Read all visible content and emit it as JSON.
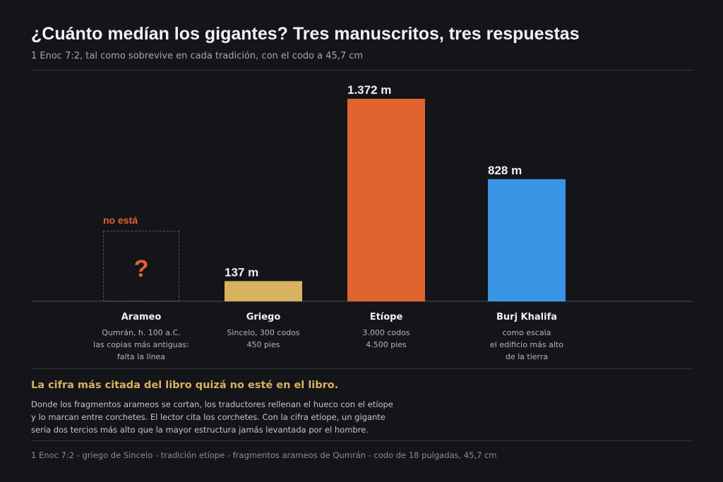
{
  "header": {
    "title": "¿Cuánto medían los gigantes? Tres manuscritos, tres respuestas",
    "subtitle": "1 Enoc 7:2, tal como sobrevive en cada tradición, con el codo a 45,7 cm"
  },
  "chart_data": {
    "type": "bar",
    "categories": [
      "Arameo",
      "Griego",
      "Etíope",
      "Burj Khalifa"
    ],
    "values": [
      null,
      137,
      1372,
      828
    ],
    "value_labels": [
      "",
      "137 m",
      "1.372 m",
      "828 m"
    ],
    "unit": "m",
    "ylim": [
      0,
      1500
    ],
    "grid": false,
    "legend": "none",
    "category_descriptions": [
      "Qumrán, h. 100 a.C.\nlas copias más antiguas:\nfalta la línea",
      "Sincelo, 300 codos\n450 pies",
      "3.000 codos\n4.500 pies",
      "como escala\nel edificio más alto\nde la tierra"
    ],
    "colors": [
      "#e0642f",
      "#d9b260",
      "#e0642f",
      "#3a94e6"
    ],
    "missing": {
      "label": "no está",
      "mark": "?"
    }
  },
  "callout": {
    "title": "La cifra más citada del libro quizá no esté en el libro.",
    "body": "Donde los fragmentos arameos se cortan, los traductores rellenan el hueco con el etíope y lo marcan entre corchetes. El lector cita los corchetes. Con la cifra etíope, un gigante sería dos tercios más alto que la mayor estructura jamás levantada por el hombre."
  },
  "footer": {
    "sources": "1 Enoc 7:2  -  griego de Sincelo  -  tradición etíope  -  fragmentos arameos de Qumrán  -  codo de 18 pulgadas, 45,7 cm"
  },
  "theme": {
    "background": "#141519",
    "axis": "#4a4c52"
  }
}
